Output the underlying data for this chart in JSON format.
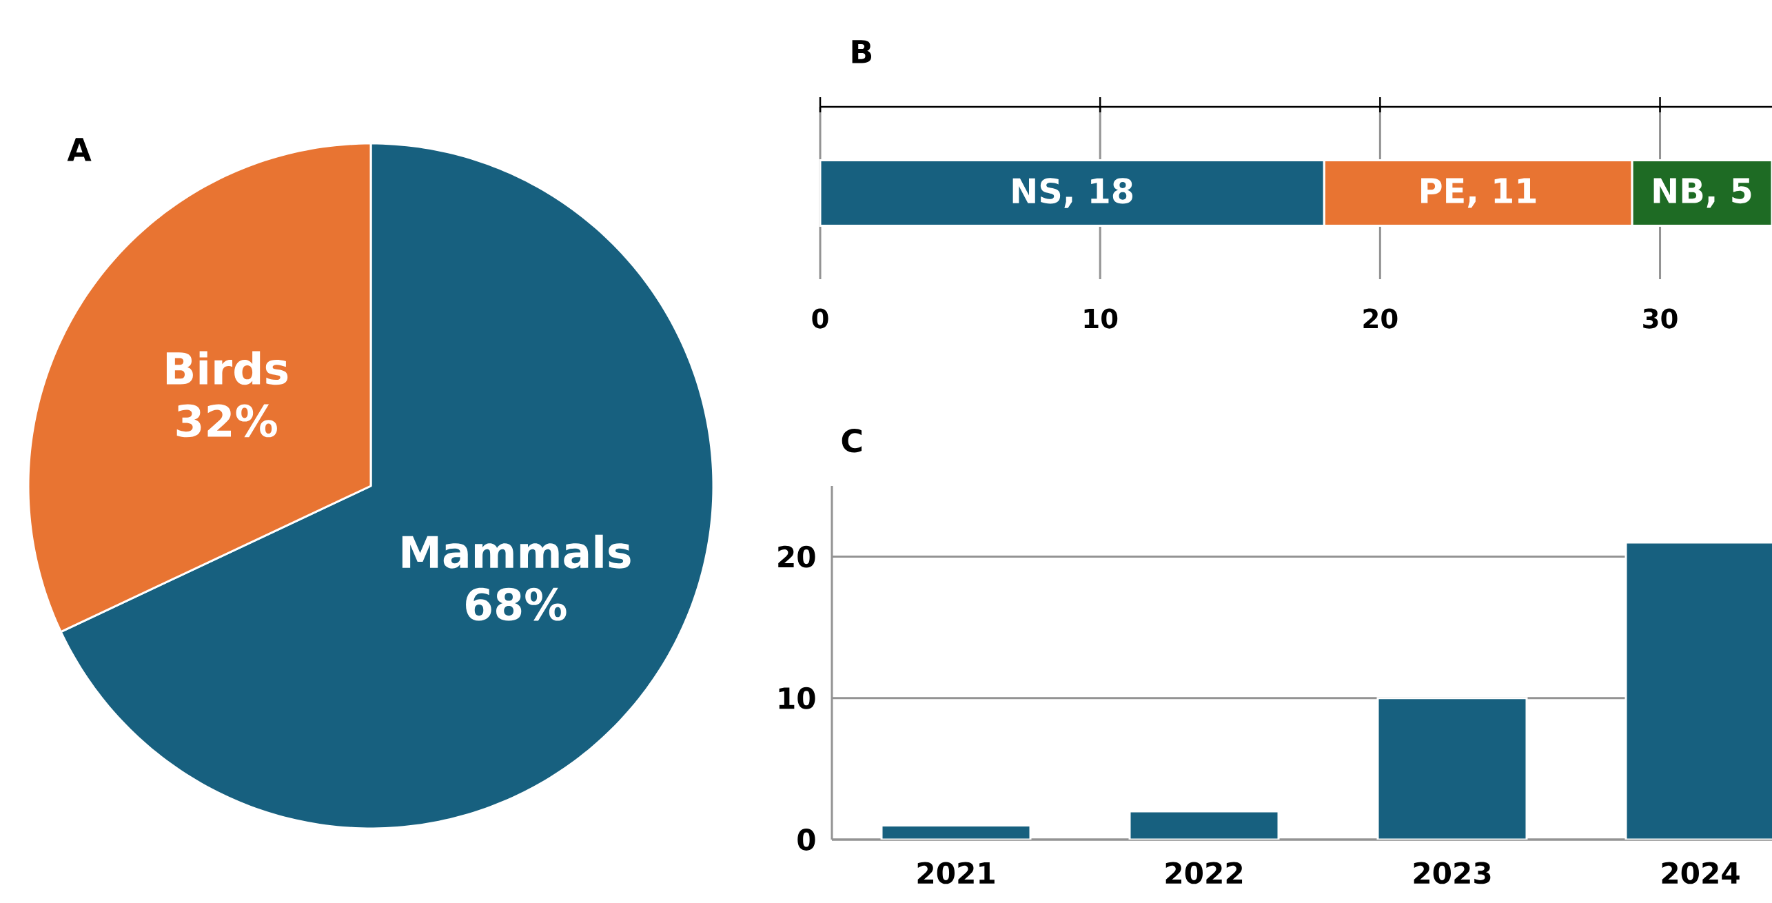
{
  "chart_data": [
    {
      "type": "pie",
      "title": "A",
      "categories": [
        "Mammals",
        "Birds"
      ],
      "values": [
        68,
        32
      ],
      "colors": [
        "#17607f",
        "#e87432"
      ],
      "value_labels": [
        "68%",
        "32%"
      ]
    },
    {
      "type": "bar",
      "title": "B",
      "orientation": "horizontal",
      "stacked": true,
      "categories": [
        null
      ],
      "xlim": [
        0,
        34
      ],
      "xticks": [
        0,
        10,
        20,
        30
      ],
      "grid": "x",
      "series": [
        {
          "color": "#17607f",
          "values": [
            18
          ],
          "value_labels": [
            "NS, 18"
          ]
        },
        {
          "color": "#e87432",
          "values": [
            11
          ],
          "value_labels": [
            "PE, 11"
          ]
        },
        {
          "color": "#1e6b24",
          "values": [
            5
          ],
          "value_labels": [
            "NB, 5"
          ]
        }
      ]
    },
    {
      "type": "bar",
      "title": "C",
      "categories": [
        "2021",
        "2022",
        "2023",
        "2024"
      ],
      "values": [
        1,
        2,
        10,
        21
      ],
      "color": "#17607f",
      "ylim": [
        0,
        25
      ],
      "yticks": [
        0,
        10,
        20
      ],
      "grid": "y"
    }
  ]
}
